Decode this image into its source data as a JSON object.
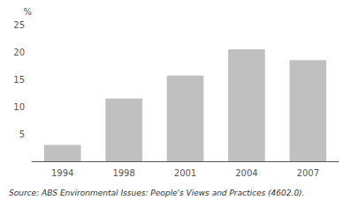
{
  "chart_data": {
    "type": "bar",
    "categories": [
      "1994",
      "1998",
      "2001",
      "2004",
      "2007"
    ],
    "values": [
      3.0,
      11.5,
      15.7,
      20.5,
      18.5
    ],
    "color": "#c0c0c0",
    "ylabel": "%",
    "ylim": [
      0,
      25
    ],
    "yticks": [
      {
        "value": 0,
        "label": ""
      },
      5,
      10,
      15,
      20,
      25
    ],
    "grid": false,
    "annotations": [
      "Source: ABS Environmental Issues: People's Views and Practices (4602.0)."
    ]
  }
}
